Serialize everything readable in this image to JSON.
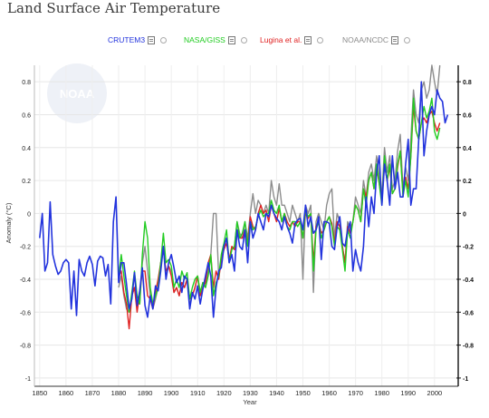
{
  "page": {
    "title": "Land Surface Air Temperature"
  },
  "legend": [
    {
      "label": "CRUTEM3",
      "color": "#2233dd"
    },
    {
      "label": "NASA/GISS",
      "color": "#22cc22"
    },
    {
      "label": "Lugina et al.",
      "color": "#e02222"
    },
    {
      "label": "NOAA/NCDC",
      "color": "#8c8c8c"
    }
  ],
  "watermark": "NOAA",
  "chart_data": {
    "type": "line",
    "title": "",
    "xlabel": "Year",
    "ylabel": "Anomaly (°C)",
    "xlim": [
      1848,
      2009
    ],
    "ylim": [
      -1.05,
      0.9
    ],
    "x_ticks": [
      1850,
      1860,
      1870,
      1880,
      1890,
      1900,
      1910,
      1920,
      1930,
      1940,
      1950,
      1960,
      1970,
      1980,
      1990,
      2000
    ],
    "y_ticks_left": [
      "0.8",
      "0.6",
      "0.4",
      "0.2",
      "0",
      "-0.2",
      "-0.4",
      "-0.6",
      "-0.8",
      "-1"
    ],
    "y_ticks_right": [
      "0.8",
      "0.6",
      "0.4",
      "0.2",
      "0",
      "-0.2",
      "-0.4",
      "-0.6",
      "-0.8",
      "-1"
    ],
    "y_tick_values": [
      0.8,
      0.6,
      0.4,
      0.2,
      0,
      -0.2,
      -0.4,
      -0.6,
      -0.8,
      -1
    ],
    "grid": true,
    "legend_position": "top",
    "series": [
      {
        "name": "CRUTEM3",
        "color": "#2233dd",
        "x_start": 1850,
        "values": [
          -0.15,
          0.0,
          -0.35,
          -0.3,
          0.07,
          -0.25,
          -0.32,
          -0.37,
          -0.35,
          -0.3,
          -0.28,
          -0.3,
          -0.58,
          -0.35,
          -0.62,
          -0.28,
          -0.35,
          -0.38,
          -0.3,
          -0.26,
          -0.31,
          -0.44,
          -0.29,
          -0.26,
          -0.27,
          -0.38,
          -0.31,
          -0.55,
          -0.05,
          0.1,
          -0.42,
          -0.3,
          -0.3,
          -0.43,
          -0.58,
          -0.52,
          -0.36,
          -0.56,
          -0.47,
          -0.33,
          -0.56,
          -0.63,
          -0.5,
          -0.58,
          -0.44,
          -0.47,
          -0.35,
          -0.2,
          -0.4,
          -0.3,
          -0.25,
          -0.33,
          -0.42,
          -0.38,
          -0.48,
          -0.38,
          -0.4,
          -0.58,
          -0.48,
          -0.52,
          -0.44,
          -0.55,
          -0.46,
          -0.38,
          -0.3,
          -0.38,
          -0.63,
          -0.45,
          -0.35,
          -0.33,
          -0.2,
          -0.15,
          -0.3,
          -0.25,
          -0.35,
          -0.1,
          -0.2,
          -0.22,
          -0.1,
          -0.3,
          -0.05,
          -0.15,
          -0.1,
          0.0,
          -0.05,
          -0.1,
          0.0,
          -0.02,
          0.05,
          0.0,
          -0.03,
          -0.05,
          -0.1,
          -0.02,
          -0.08,
          -0.12,
          -0.18,
          -0.06,
          -0.04,
          -0.03,
          -0.1,
          0.05,
          -0.08,
          -0.02,
          -0.12,
          -0.1,
          -0.02,
          -0.28,
          -0.05,
          -0.05,
          -0.06,
          -0.2,
          -0.22,
          -0.08,
          -0.02,
          -0.18,
          -0.2,
          -0.1,
          -0.05,
          -0.35,
          -0.22,
          -0.3,
          -0.35,
          -0.2,
          0.1,
          -0.08,
          0.1,
          0.0,
          0.25,
          0.35,
          0.05,
          0.3,
          0.2,
          0.05,
          0.35,
          0.15,
          0.25,
          0.1,
          0.1,
          0.3,
          0.45,
          0.05,
          0.15,
          0.15,
          0.45,
          0.8,
          0.35,
          0.5,
          0.6,
          0.65,
          0.6,
          0.75,
          0.7,
          0.68,
          0.55,
          0.6
        ]
      },
      {
        "name": "NASA/GISS",
        "color": "#22cc22",
        "x_start": 1880,
        "values": [
          -0.38,
          -0.25,
          -0.38,
          -0.5,
          -0.6,
          -0.48,
          -0.35,
          -0.5,
          -0.55,
          -0.25,
          -0.05,
          -0.15,
          -0.45,
          -0.55,
          -0.5,
          -0.45,
          -0.3,
          -0.12,
          -0.3,
          -0.28,
          -0.32,
          -0.45,
          -0.4,
          -0.45,
          -0.35,
          -0.4,
          -0.36,
          -0.52,
          -0.45,
          -0.4,
          -0.38,
          -0.48,
          -0.42,
          -0.45,
          -0.38,
          -0.25,
          -0.5,
          -0.42,
          -0.38,
          -0.25,
          -0.18,
          -0.1,
          -0.3,
          -0.22,
          -0.2,
          -0.05,
          -0.15,
          -0.12,
          -0.05,
          -0.2,
          -0.05,
          -0.1,
          -0.08,
          -0.02,
          0.02,
          -0.02,
          0.0,
          0.0,
          0.08,
          0.02,
          0.0,
          0.05,
          -0.05,
          0.0,
          -0.08,
          -0.1,
          -0.05,
          -0.05,
          -0.08,
          -0.05,
          -0.15,
          0.02,
          -0.02,
          0.0,
          -0.35,
          -0.1,
          -0.05,
          -0.15,
          -0.1,
          -0.05,
          -0.02,
          -0.08,
          -0.2,
          -0.08,
          -0.1,
          -0.22,
          -0.35,
          -0.1,
          -0.15,
          -0.05,
          0.05,
          0.02,
          -0.05,
          0.15,
          0.05,
          0.2,
          0.25,
          0.15,
          0.3,
          0.18,
          0.05,
          0.35,
          0.2,
          0.3,
          0.12,
          0.15,
          0.3,
          0.38,
          0.1,
          0.2,
          0.1,
          0.35,
          0.7,
          0.5,
          0.45,
          0.55,
          0.65,
          0.58,
          0.62,
          0.7,
          0.5,
          0.45,
          0.52
        ]
      },
      {
        "name": "Lugina et al.",
        "color": "#e02222",
        "x_start": 1880,
        "values": [
          -0.38,
          -0.35,
          -0.48,
          -0.55,
          -0.7,
          -0.5,
          -0.45,
          -0.6,
          -0.48,
          -0.35,
          -0.35,
          -0.5,
          -0.52,
          -0.58,
          -0.48,
          -0.4,
          -0.3,
          -0.22,
          -0.35,
          -0.32,
          -0.38,
          -0.48,
          -0.45,
          -0.5,
          -0.42,
          -0.45,
          -0.4,
          -0.52,
          -0.5,
          -0.45,
          -0.38,
          -0.5,
          -0.45,
          -0.42,
          -0.3,
          -0.25,
          -0.45,
          -0.35,
          -0.4,
          -0.28,
          -0.22,
          -0.18,
          -0.28,
          -0.2,
          -0.22,
          -0.1,
          -0.15,
          -0.15,
          -0.1,
          -0.18,
          -0.02,
          -0.08,
          -0.1,
          0.0,
          0.05,
          0.0,
          0.02,
          -0.05,
          0.05,
          0.0,
          -0.05,
          0.03,
          -0.05,
          0.0,
          -0.05,
          -0.08,
          -0.05,
          -0.08,
          -0.05,
          -0.05,
          -0.15,
          0.0,
          -0.03,
          0.0,
          -0.3,
          -0.08,
          -0.05,
          -0.12,
          -0.1,
          -0.05,
          -0.02,
          -0.06,
          -0.18,
          -0.05,
          -0.08,
          -0.2,
          -0.3,
          -0.08,
          -0.12,
          -0.05,
          0.05,
          0.02,
          -0.05,
          0.15,
          0.1,
          0.2,
          0.25,
          0.15,
          0.28,
          0.18,
          0.08,
          0.3,
          0.2,
          0.28,
          0.12,
          0.15,
          0.28,
          0.38,
          0.12,
          0.22,
          0.15,
          0.35,
          0.65,
          0.5,
          0.45,
          0.55,
          0.58,
          0.55,
          0.6,
          0.62,
          0.55,
          0.5,
          0.55
        ]
      },
      {
        "name": "NOAA/NCDC",
        "color": "#8c8c8c",
        "x_start": 1880,
        "values": [
          -0.45,
          -0.38,
          -0.5,
          -0.58,
          -0.6,
          -0.5,
          -0.45,
          -0.55,
          -0.55,
          -0.3,
          -0.2,
          -0.35,
          -0.5,
          -0.58,
          -0.52,
          -0.45,
          -0.3,
          -0.2,
          -0.38,
          -0.32,
          -0.35,
          -0.48,
          -0.45,
          -0.5,
          -0.42,
          -0.45,
          -0.4,
          -0.55,
          -0.5,
          -0.45,
          -0.38,
          -0.48,
          -0.42,
          -0.45,
          -0.35,
          -0.25,
          0.0,
          0.0,
          -0.38,
          -0.28,
          -0.2,
          -0.15,
          -0.3,
          -0.22,
          -0.2,
          -0.05,
          -0.12,
          -0.15,
          -0.05,
          -0.15,
          0.0,
          0.12,
          0.0,
          0.08,
          0.05,
          0.0,
          0.05,
          0.0,
          0.2,
          0.1,
          0.05,
          0.18,
          0.05,
          0.05,
          0.0,
          -0.05,
          0.05,
          0.0,
          -0.05,
          0.0,
          -0.4,
          0.05,
          0.0,
          0.05,
          -0.48,
          -0.05,
          0.0,
          -0.05,
          -0.1,
          0.05,
          0.12,
          0.15,
          -0.15,
          0.0,
          -0.05,
          -0.2,
          -0.3,
          -0.05,
          -0.1,
          -0.05,
          0.1,
          0.05,
          0.0,
          0.2,
          0.1,
          0.25,
          0.3,
          0.2,
          0.35,
          0.22,
          0.1,
          0.4,
          0.25,
          0.35,
          0.15,
          0.2,
          0.38,
          0.48,
          0.15,
          0.28,
          0.2,
          0.45,
          0.75,
          0.6,
          0.55,
          0.75,
          0.8,
          0.7,
          0.75,
          0.9,
          0.8,
          0.72,
          0.9
        ]
      }
    ]
  }
}
